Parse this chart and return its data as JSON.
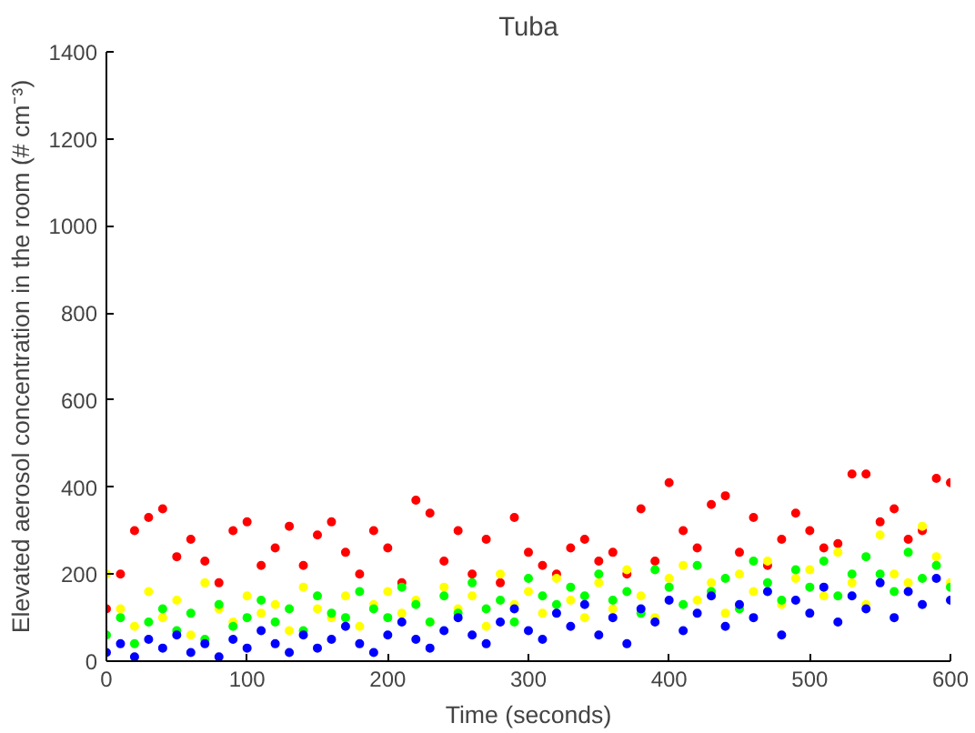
{
  "chart_data": {
    "type": "scatter",
    "title": "Tuba",
    "xlabel": "Time (seconds)",
    "ylabel": "Elevated aerosol concentration in the room (# cm⁻³)",
    "x": [
      0,
      10,
      20,
      30,
      40,
      50,
      60,
      70,
      80,
      90,
      100,
      110,
      120,
      130,
      140,
      150,
      160,
      170,
      180,
      190,
      200,
      210,
      220,
      230,
      240,
      250,
      260,
      270,
      280,
      290,
      300,
      310,
      320,
      330,
      340,
      350,
      360,
      370,
      380,
      390,
      400,
      410,
      420,
      430,
      440,
      450,
      460,
      470,
      480,
      490,
      500,
      510,
      520,
      530,
      540,
      550,
      560,
      570,
      580,
      590,
      600
    ],
    "series": [
      {
        "color": "#ff0000",
        "values": [
          120,
          200,
          300,
          330,
          350,
          240,
          280,
          230,
          180,
          300,
          320,
          220,
          260,
          310,
          220,
          290,
          320,
          250,
          200,
          300,
          260,
          180,
          370,
          340,
          230,
          300,
          200,
          280,
          180,
          330,
          250,
          220,
          200,
          260,
          280,
          230,
          250,
          200,
          350,
          230,
          410,
          300,
          260,
          360,
          380,
          250,
          330,
          220,
          280,
          340,
          300,
          260,
          270,
          430,
          430,
          320,
          350,
          280,
          300,
          420,
          410
        ]
      },
      {
        "color": "#ffff00",
        "values": [
          200,
          120,
          80,
          160,
          100,
          140,
          60,
          180,
          120,
          90,
          150,
          110,
          130,
          70,
          170,
          120,
          100,
          150,
          80,
          130,
          160,
          110,
          140,
          90,
          170,
          120,
          150,
          80,
          200,
          130,
          160,
          110,
          190,
          140,
          100,
          180,
          120,
          210,
          150,
          100,
          190,
          220,
          140,
          180,
          110,
          200,
          160,
          230,
          130,
          190,
          210,
          150,
          250,
          180,
          130,
          290,
          200,
          180,
          310,
          240,
          180
        ]
      },
      {
        "color": "#00ff00",
        "values": [
          60,
          100,
          40,
          90,
          120,
          70,
          110,
          50,
          130,
          80,
          100,
          140,
          90,
          120,
          70,
          150,
          110,
          100,
          160,
          120,
          100,
          170,
          130,
          90,
          150,
          110,
          180,
          120,
          140,
          90,
          190,
          150,
          130,
          170,
          150,
          200,
          140,
          160,
          110,
          210,
          170,
          130,
          220,
          160,
          190,
          120,
          230,
          180,
          140,
          210,
          170,
          230,
          150,
          200,
          240,
          200,
          160,
          250,
          190,
          220,
          170
        ]
      },
      {
        "color": "#0000ff",
        "values": [
          20,
          40,
          10,
          50,
          30,
          60,
          20,
          40,
          10,
          50,
          30,
          70,
          40,
          20,
          60,
          30,
          50,
          80,
          40,
          20,
          60,
          90,
          50,
          30,
          70,
          100,
          60,
          40,
          90,
          120,
          70,
          50,
          110,
          80,
          130,
          60,
          100,
          40,
          120,
          90,
          140,
          70,
          110,
          150,
          80,
          130,
          100,
          160,
          60,
          140,
          110,
          170,
          90,
          150,
          120,
          180,
          100,
          160,
          130,
          190,
          140
        ]
      }
    ],
    "xlim": [
      0,
      600
    ],
    "xticks": [
      0,
      100,
      200,
      300,
      400,
      500,
      600
    ],
    "ylim": [
      0,
      1400
    ],
    "yticks": [
      0,
      200,
      400,
      600,
      800,
      1000,
      1200,
      1400
    ],
    "grid": false,
    "marker": "circle"
  }
}
